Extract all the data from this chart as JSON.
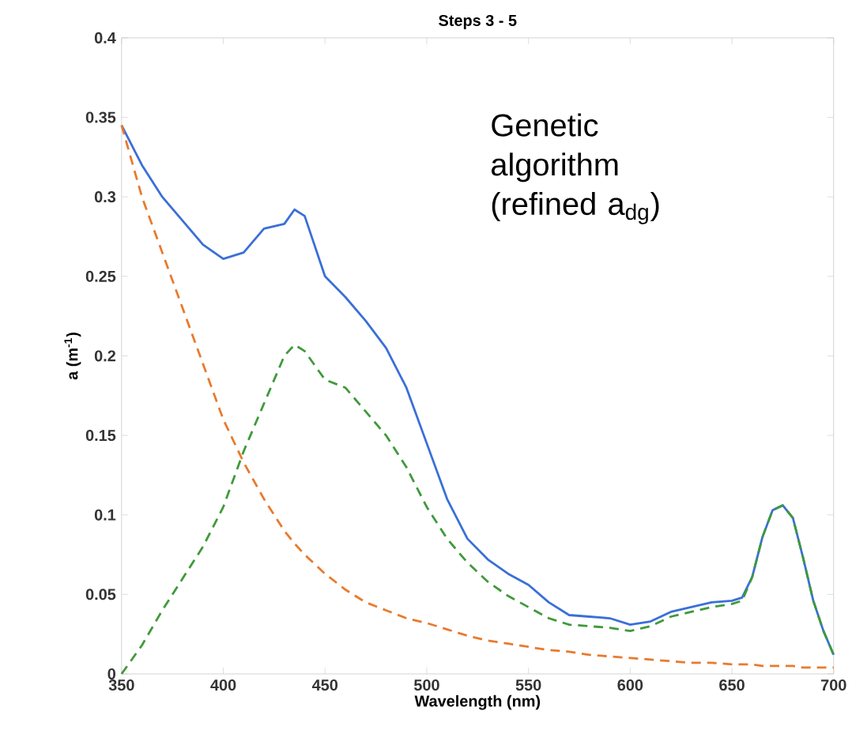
{
  "chart_data": {
    "type": "line",
    "title": "Steps 3 - 5",
    "xlabel": "Wavelength (nm)",
    "ylabel": "a (m$^{-1}$)",
    "annotations": [
      "Genetic algorithm (refined a$_{dg}$)"
    ],
    "x": [
      350,
      360,
      370,
      380,
      390,
      400,
      410,
      420,
      430,
      435,
      440,
      450,
      460,
      470,
      480,
      490,
      500,
      510,
      520,
      530,
      540,
      550,
      560,
      570,
      580,
      590,
      600,
      610,
      620,
      630,
      640,
      650,
      655,
      660,
      665,
      670,
      675,
      680,
      685,
      690,
      695,
      700
    ],
    "series": [
      {
        "color": "#3a6fd8",
        "line_style": "solid",
        "values": [
          0.345,
          0.32,
          0.3,
          0.285,
          0.27,
          0.261,
          0.265,
          0.28,
          0.283,
          0.292,
          0.288,
          0.25,
          0.237,
          0.222,
          0.205,
          0.18,
          0.145,
          0.11,
          0.085,
          0.072,
          0.063,
          0.056,
          0.045,
          0.037,
          0.036,
          0.035,
          0.031,
          0.033,
          0.039,
          0.042,
          0.045,
          0.046,
          0.048,
          0.061,
          0.086,
          0.103,
          0.106,
          0.098,
          0.073,
          0.046,
          0.027,
          0.012
        ]
      },
      {
        "color": "#e87a2e",
        "line_style": "dashed",
        "values": [
          0.345,
          0.3,
          0.265,
          0.23,
          0.195,
          0.16,
          0.133,
          0.11,
          0.09,
          0.082,
          0.075,
          0.063,
          0.053,
          0.045,
          0.04,
          0.035,
          0.032,
          0.028,
          0.024,
          0.021,
          0.019,
          0.017,
          0.015,
          0.014,
          0.012,
          0.011,
          0.01,
          0.009,
          0.008,
          0.007,
          0.007,
          0.006,
          0.006,
          0.006,
          0.005,
          0.005,
          0.005,
          0.005,
          0.004,
          0.004,
          0.004,
          0.004
        ]
      },
      {
        "color": "#3f9a3a",
        "line_style": "dashed",
        "values": [
          0,
          0.018,
          0.04,
          0.06,
          0.08,
          0.105,
          0.14,
          0.17,
          0.2,
          0.207,
          0.203,
          0.185,
          0.18,
          0.165,
          0.15,
          0.13,
          0.105,
          0.085,
          0.07,
          0.058,
          0.049,
          0.042,
          0.035,
          0.031,
          0.03,
          0.029,
          0.027,
          0.03,
          0.036,
          0.039,
          0.042,
          0.044,
          0.046,
          0.061,
          0.086,
          0.103,
          0.106,
          0.098,
          0.073,
          0.046,
          0.027,
          0.012
        ]
      }
    ],
    "xlim": [
      350,
      700
    ],
    "ylim": [
      0,
      0.4
    ],
    "xticks": [
      350,
      400,
      450,
      500,
      550,
      600,
      650,
      700
    ],
    "yticks": [
      0,
      0.05,
      0.1,
      0.15,
      0.2,
      0.25,
      0.3,
      0.35,
      0.4
    ],
    "grid": false,
    "marker": "none"
  }
}
